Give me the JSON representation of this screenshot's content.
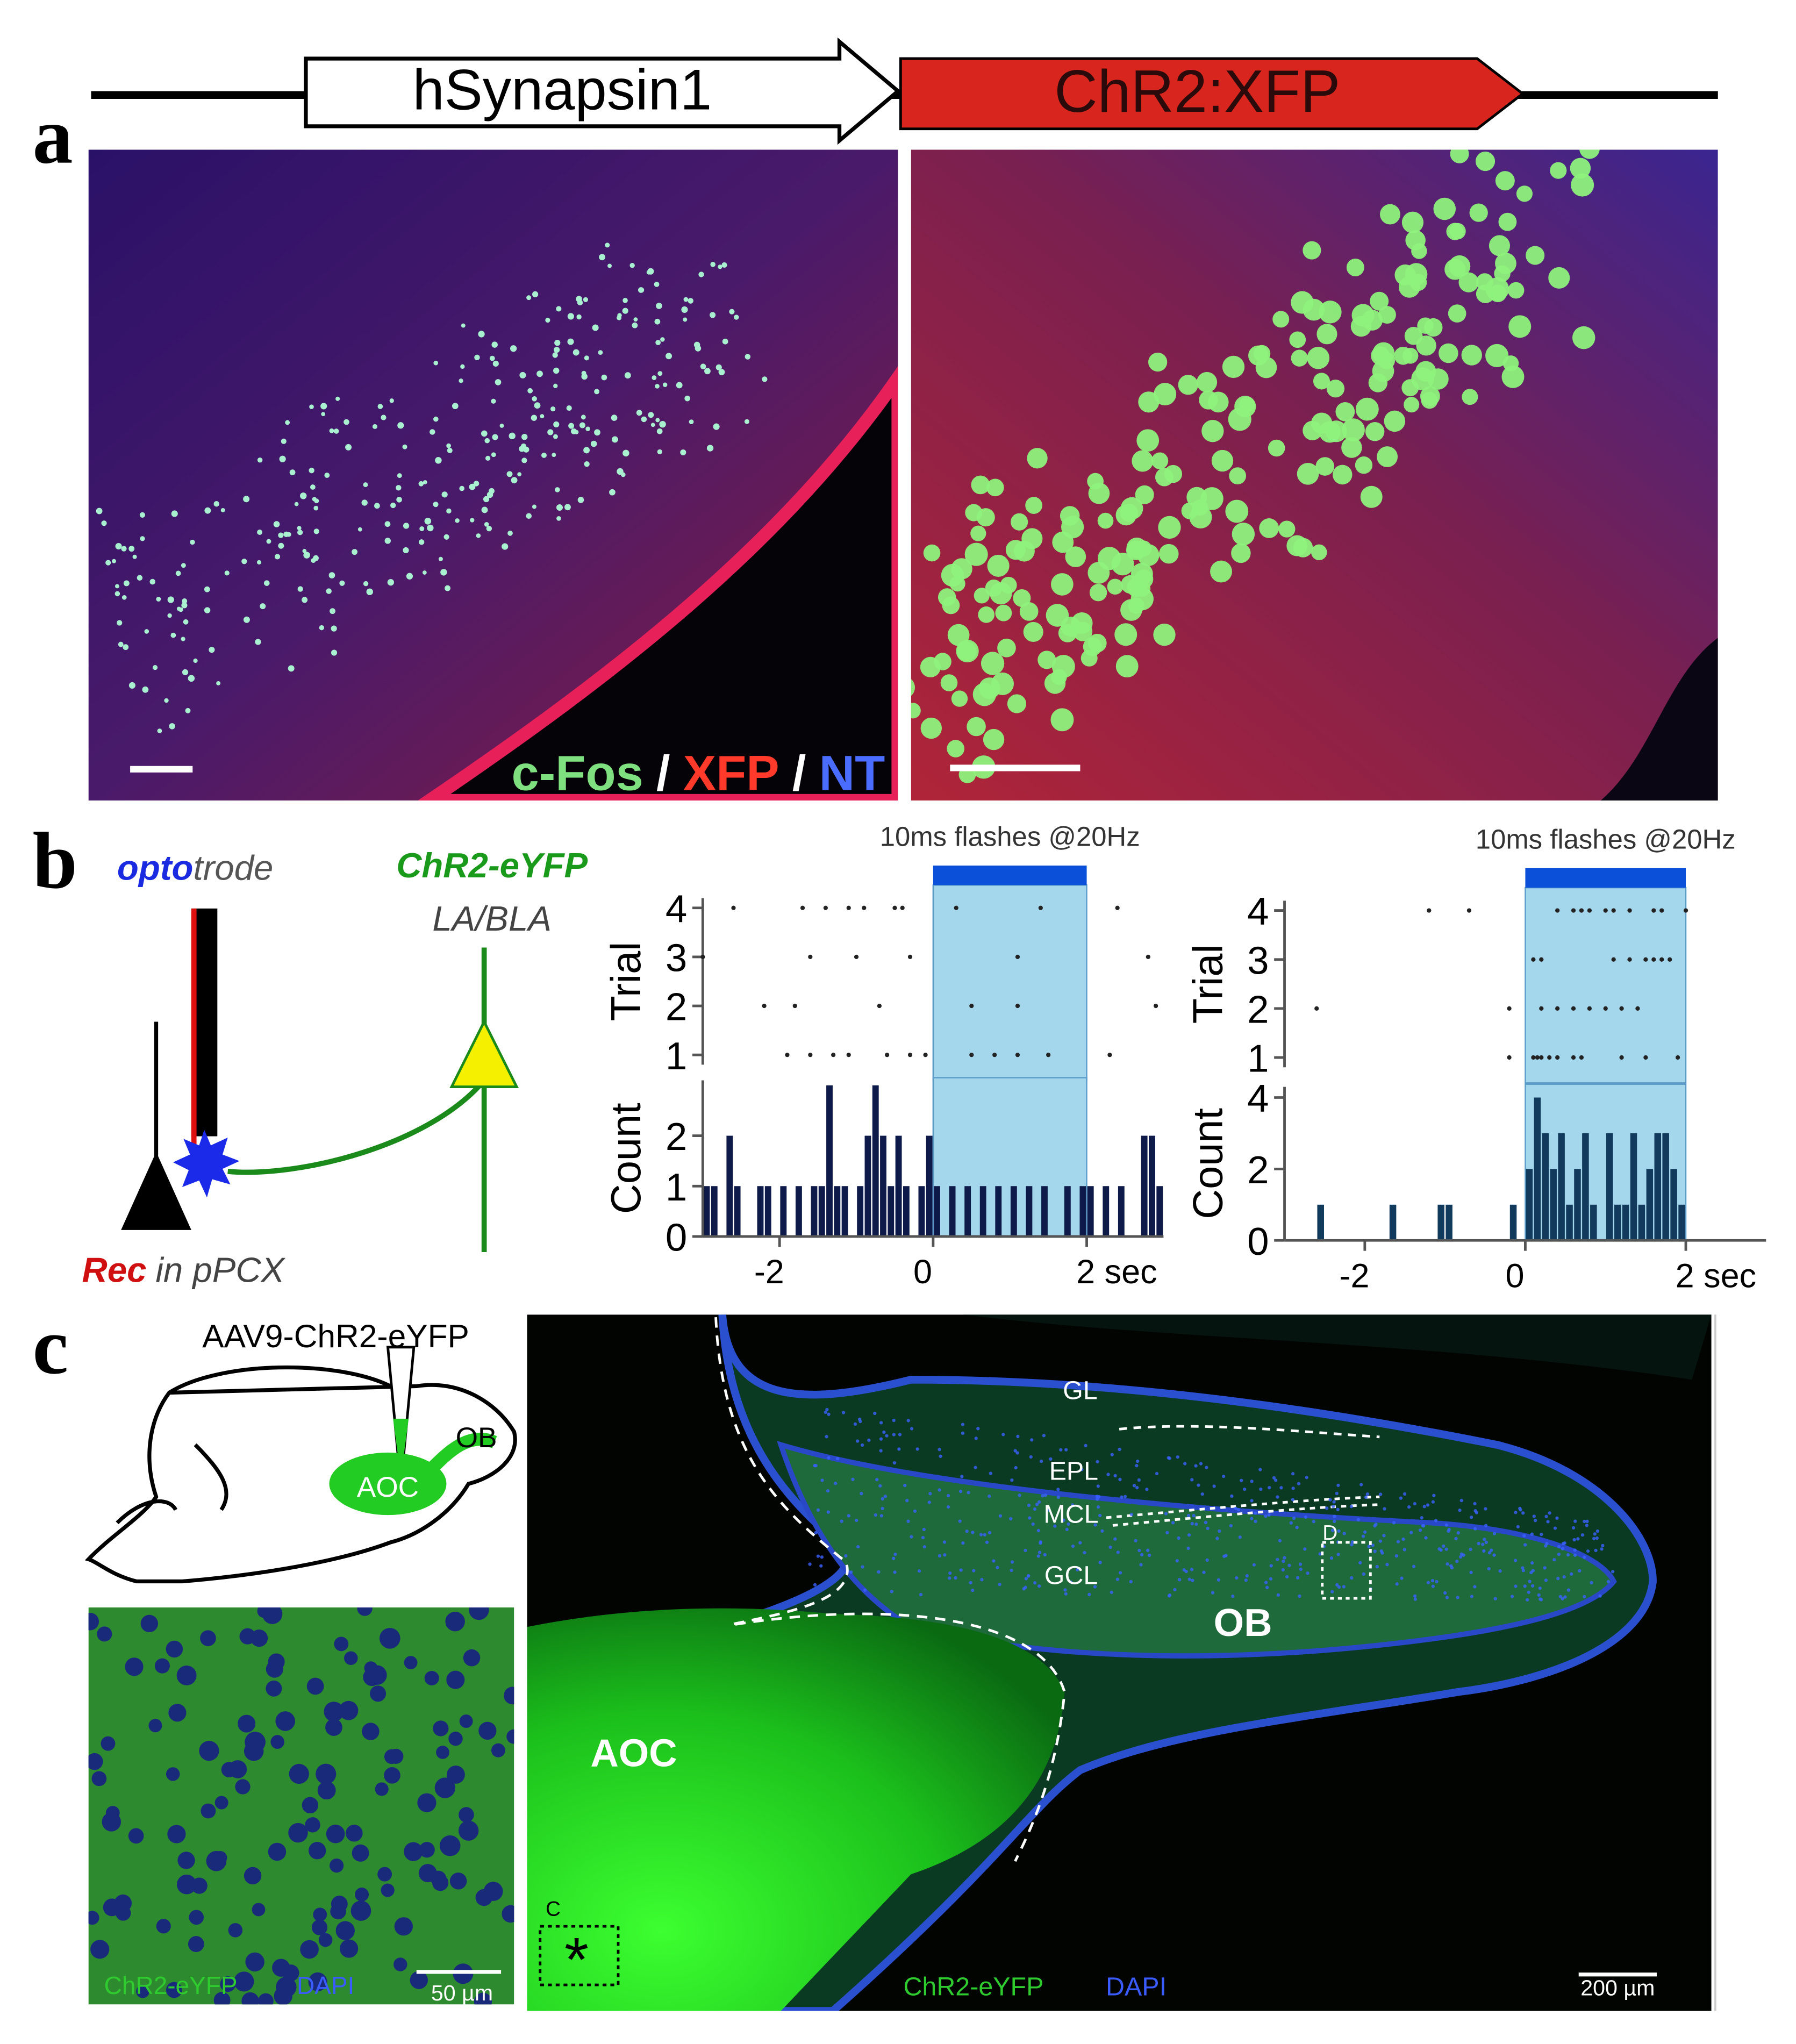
{
  "construct": {
    "promoter": "hSynapsin1",
    "transgene": "ChR2:XFP"
  },
  "panel_a": {
    "letter": "a",
    "stain_labels": [
      "c-Fos",
      "/",
      "XFP",
      "/",
      "NT"
    ]
  },
  "panel_b": {
    "letter": "b",
    "schematic": {
      "opto": "opto",
      "trode": "trode",
      "opsin": "ChR2-eYFP",
      "region": "LA/BLA",
      "rec": "Rec",
      "rec_site": "in pPCX"
    }
  },
  "chart_data": [
    {
      "type": "raster",
      "title": "10ms flashes @20Hz",
      "ylabel": "Trial",
      "ylim": [
        0.8,
        4.2
      ],
      "yticks": [
        1,
        2,
        3,
        4
      ],
      "xlim": [
        -3,
        3
      ],
      "stimulus": [
        0,
        2
      ],
      "stimulus_color": "#0a50d8",
      "shade_color": "#a4d6ec",
      "spikes": [
        [
          -1.9,
          -1.6,
          -1.3,
          -1.1,
          -0.6,
          -0.3,
          -0.1,
          0.5,
          0.8,
          1.1,
          1.5,
          2.3
        ],
        [
          -2.2,
          -1.8,
          -0.7,
          0.5,
          1.1,
          2.9
        ],
        [
          -3,
          -1.6,
          -1,
          -0.3,
          1.1,
          2.8
        ],
        [
          -2.6,
          -1.7,
          -1.4,
          -1.1,
          -0.9,
          -0.5,
          -0.4,
          0.3,
          1.4,
          2.4
        ]
      ]
    },
    {
      "type": "histogram",
      "ylabel": "Count",
      "ylim": [
        0,
        3.1
      ],
      "yticks": [
        0,
        1,
        2
      ],
      "xlim": [
        -3,
        3
      ],
      "xticks": [
        -2,
        0,
        {
          "value": 2,
          "label": "2 sec"
        }
      ],
      "color": "#0d1a4a",
      "stimulus": [
        0,
        2
      ],
      "shade_color": "#a4d6ec",
      "bins": [
        -3,
        -2.9,
        -2.8,
        -2.7,
        -2.6,
        -2.5,
        -2.4,
        -2.3,
        -2.2,
        -2.1,
        -2,
        -1.9,
        -1.8,
        -1.7,
        -1.6,
        -1.5,
        -1.4,
        -1.3,
        -1.2,
        -1.1,
        -1,
        -0.9,
        -0.8,
        -0.7,
        -0.6,
        -0.5,
        -0.4,
        -0.3,
        -0.2,
        -0.1,
        0,
        0.1,
        0.2,
        0.3,
        0.4,
        0.5,
        0.6,
        0.7,
        0.8,
        0.9,
        1,
        1.1,
        1.2,
        1.3,
        1.4,
        1.5,
        1.6,
        1.7,
        1.8,
        1.9,
        2,
        2.1,
        2.2,
        2.3,
        2.4,
        2.5,
        2.6,
        2.7,
        2.8,
        2.9,
        3
      ],
      "counts": [
        1,
        1,
        0,
        2,
        1,
        0,
        0,
        1,
        1,
        0,
        1,
        0,
        1,
        0,
        1,
        1,
        3,
        1,
        1,
        0,
        1,
        2,
        3,
        2,
        1,
        2,
        1,
        0,
        1,
        2,
        1,
        0,
        1,
        0,
        1,
        0,
        1,
        0,
        1,
        0,
        1,
        0,
        1,
        0,
        1,
        0,
        0,
        1,
        0,
        1,
        1,
        0,
        1,
        0,
        1,
        0,
        0,
        2,
        2,
        1
      ]
    },
    {
      "type": "raster",
      "title": "10ms flashes @20Hz",
      "ylabel": "Trial",
      "ylim": [
        0.8,
        4.2
      ],
      "yticks": [
        1,
        2,
        3,
        4
      ],
      "xlim": [
        -3,
        3
      ],
      "stimulus": [
        0,
        2
      ],
      "stimulus_color": "#0a50d8",
      "shade_color": "#a4d6ec",
      "spikes": [
        [
          -0.2,
          0.1,
          0.15,
          0.2,
          0.3,
          0.4,
          0.6,
          0.7,
          1.2,
          1.5,
          1.9
        ],
        [
          -2.6,
          -0.2,
          0.2,
          0.4,
          0.6,
          0.8,
          1,
          1.2,
          1.4
        ],
        [
          0.1,
          0.2,
          1.1,
          1.3,
          1.5,
          1.6,
          1.7,
          1.8
        ],
        [
          -1.2,
          -0.7,
          0.4,
          0.6,
          0.7,
          0.8,
          1,
          1.1,
          1.3,
          1.6,
          1.7,
          2
        ]
      ]
    },
    {
      "type": "histogram",
      "ylabel": "Count",
      "ylim": [
        0,
        4.3
      ],
      "yticks": [
        0,
        2,
        4
      ],
      "xlim": [
        -3,
        3
      ],
      "xticks": [
        -2,
        0,
        {
          "value": 2,
          "label": "2 sec"
        }
      ],
      "color": "#123a5c",
      "stimulus": [
        0,
        2
      ],
      "shade_color": "#a4d6ec",
      "bins": [
        -3,
        -2.9,
        -2.8,
        -2.7,
        -2.6,
        -2.5,
        -2.4,
        -2.3,
        -2.2,
        -2.1,
        -2,
        -1.9,
        -1.8,
        -1.7,
        -1.6,
        -1.5,
        -1.4,
        -1.3,
        -1.2,
        -1.1,
        -1,
        -0.9,
        -0.8,
        -0.7,
        -0.6,
        -0.5,
        -0.4,
        -0.3,
        -0.2,
        -0.1,
        0,
        0.1,
        0.2,
        0.3,
        0.4,
        0.5,
        0.6,
        0.7,
        0.8,
        0.9,
        1,
        1.1,
        1.2,
        1.3,
        1.4,
        1.5,
        1.6,
        1.7,
        1.8,
        1.9,
        2,
        2.1,
        2.2,
        2.3,
        2.4,
        2.5,
        2.6,
        2.7,
        2.8,
        2.9,
        3
      ],
      "counts": [
        0,
        0,
        0,
        0,
        1,
        0,
        0,
        0,
        0,
        0,
        0,
        0,
        0,
        1,
        0,
        0,
        0,
        0,
        0,
        1,
        1,
        0,
        0,
        0,
        0,
        0,
        0,
        0,
        1,
        0,
        2,
        4,
        3,
        2,
        3,
        1,
        2,
        3,
        1,
        0,
        3,
        1,
        1,
        3,
        1,
        2,
        3,
        3,
        2,
        1,
        0,
        0,
        0,
        0,
        0,
        0,
        0,
        0,
        0,
        0
      ]
    }
  ],
  "panel_c": {
    "letter": "c",
    "virus": "AAV9-ChR2-eYFP",
    "schematic_labels": [
      "OB",
      "AOC"
    ],
    "inset": {
      "stain_labels": [
        "ChR2-eYFP",
        "DAPI"
      ],
      "scale": "50 µm"
    },
    "section": {
      "layer_labels": [
        "GL",
        "EPL",
        "MCL",
        "GCL"
      ],
      "region_labels": [
        "OB",
        "AOC"
      ],
      "box_labels": [
        "D",
        "C"
      ],
      "marker": "*",
      "stain_labels": [
        "ChR2-eYFP",
        "DAPI"
      ],
      "scale": "200 µm"
    }
  }
}
